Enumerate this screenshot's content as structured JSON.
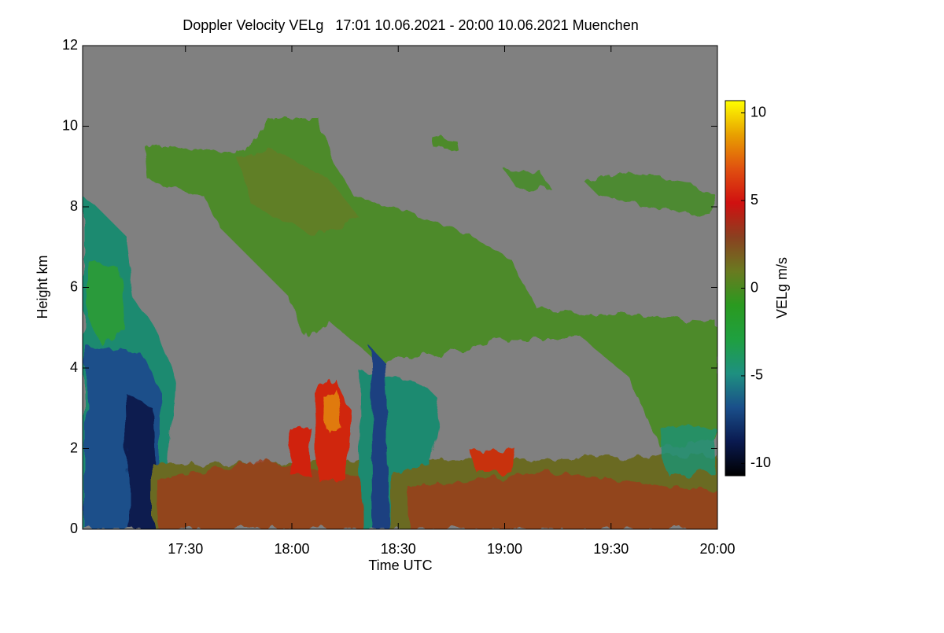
{
  "chart_data": {
    "type": "heatmap",
    "title": "Doppler Velocity VELg   17:01 10.06.2021 - 20:00 10.06.2021 Muenchen",
    "x_label": "Time UTC",
    "y_label": "Height km",
    "colorbar_label": "VELg m/s",
    "xlim": [
      17.0167,
      20.0
    ],
    "xticks": [
      {
        "value": 17.5,
        "label": "17:30"
      },
      {
        "value": 18.0,
        "label": "18:00"
      },
      {
        "value": 18.5,
        "label": "18:30"
      },
      {
        "value": 19.0,
        "label": "19:00"
      },
      {
        "value": 19.5,
        "label": "19:30"
      },
      {
        "value": 20.0,
        "label": "20:00"
      }
    ],
    "ylim": [
      0,
      12
    ],
    "yticks": [
      0,
      2,
      4,
      6,
      8,
      10,
      12
    ],
    "zlim": [
      -10.7,
      10.7
    ],
    "zticks": [
      -10,
      -5,
      0,
      5,
      10
    ],
    "colormap": [
      "#000000",
      "#0a1a50",
      "#1a4f8a",
      "#1e9080",
      "#1fa040",
      "#2a9a20",
      "#6a7a20",
      "#8a4020",
      "#d01010",
      "#e05010",
      "#e8a000",
      "#ffff00"
    ],
    "background": "#808080"
  }
}
